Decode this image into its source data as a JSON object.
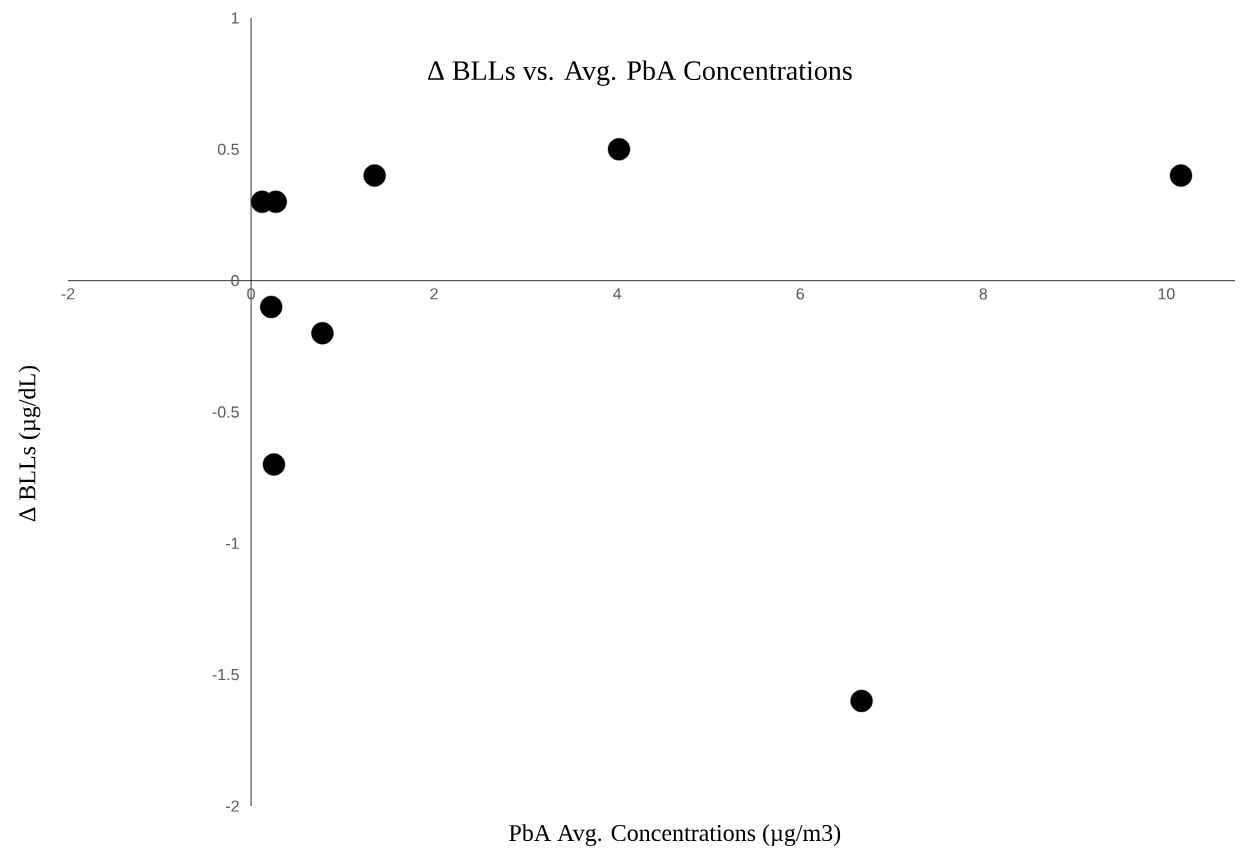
{
  "chart_data": {
    "type": "scatter",
    "title": "Δ BLLs vs. Avg. PbA Concentrations",
    "xlabel": "PbA Avg. Concentrations (µg/m3)",
    "ylabel": "Δ BLLs (µg/dL)",
    "x": [
      0.12,
      0.27,
      1.35,
      4.02,
      10.16,
      0.22,
      0.78,
      0.25,
      6.67
    ],
    "values": [
      0.3,
      0.3,
      0.4,
      0.5,
      0.4,
      -0.1,
      -0.2,
      -0.7,
      -1.6
    ],
    "color": "#000000",
    "marker": "circle",
    "xlim": [
      -2,
      10.75
    ],
    "ylim": [
      -2,
      1
    ],
    "xticks": [
      -2,
      0,
      2,
      4,
      6,
      8,
      10
    ],
    "yticks": [
      -2,
      -1.5,
      -1,
      -0.5,
      0,
      0.5,
      1
    ],
    "grid": false
  }
}
